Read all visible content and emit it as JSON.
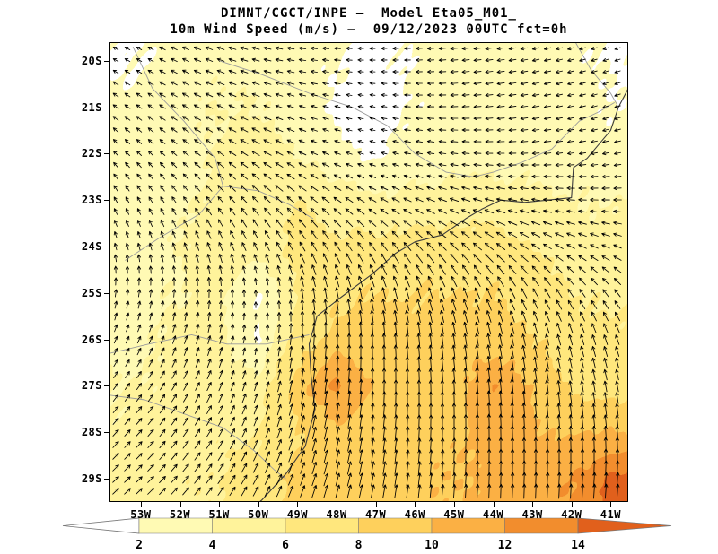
{
  "title": {
    "line1": "DIMNT/CGCT/INPE —  Model Eta05_M01_",
    "line2": "10m Wind Speed (m/s) —  09/12/2023 00UTC fct=0h"
  },
  "axes": {
    "lat_ticks": [
      "20S",
      "21S",
      "22S",
      "23S",
      "24S",
      "25S",
      "26S",
      "27S",
      "28S",
      "29S"
    ],
    "lat_values": [
      -20,
      -21,
      -22,
      -23,
      -24,
      -25,
      -26,
      -27,
      -28,
      -29
    ],
    "lon_ticks": [
      "53W",
      "52W",
      "51W",
      "50W",
      "49W",
      "48W",
      "47W",
      "46W",
      "45W",
      "44W",
      "43W",
      "42W",
      "41W"
    ],
    "lon_values": [
      -53,
      -52,
      -51,
      -50,
      -49,
      -48,
      -47,
      -46,
      -45,
      -44,
      -43,
      -42,
      -41
    ],
    "lon_range": [
      -53.8,
      -40.55
    ],
    "lat_range": [
      -19.6,
      -29.5
    ]
  },
  "colorbar": {
    "labels": [
      "2",
      "4",
      "6",
      "8",
      "10",
      "12",
      "14"
    ],
    "levels": [
      2,
      4,
      6,
      8,
      10,
      12,
      14
    ],
    "colors": [
      "#ffffff",
      "#fffab4",
      "#fff39b",
      "#ffe77d",
      "#fed05c",
      "#fbb044",
      "#f28d2d",
      "#e1601c"
    ]
  },
  "chart_data": {
    "type": "heatmap",
    "title": "10m Wind Speed (m/s)",
    "units": "m/s",
    "model": "Eta05_M01_",
    "valid": "09/12/2023 00UTC fct=0h",
    "legend_position": "bottom",
    "shading_levels": [
      2,
      4,
      6,
      8,
      10,
      12,
      14
    ],
    "lon_deg_east": [
      -53,
      -52,
      -51,
      -50,
      -49,
      -48,
      -47,
      -46,
      -45,
      -44,
      -43,
      -42,
      -41
    ],
    "lat_deg_north": [
      -20,
      -21,
      -22,
      -23,
      -24,
      -25,
      -26,
      -27,
      -28,
      -29
    ],
    "speed_grid_ms": [
      [
        1.8,
        3,
        3.5,
        3.5,
        3,
        2.2,
        1.4,
        2.2,
        3.2,
        3.5,
        3,
        2.5,
        1.8
      ],
      [
        2.5,
        3.5,
        4,
        4,
        3,
        1.5,
        1.2,
        2.2,
        3.2,
        3.5,
        3,
        2.5,
        2.2
      ],
      [
        2.5,
        3,
        4.2,
        5,
        4,
        2.6,
        1.6,
        2.6,
        3.2,
        3.2,
        3,
        2.6,
        2.6
      ],
      [
        2.6,
        3.5,
        4.5,
        5.5,
        6,
        5,
        4.5,
        4.5,
        5,
        5,
        4.5,
        4,
        4
      ],
      [
        3,
        4,
        5,
        5,
        6.5,
        6.5,
        6.5,
        7,
        7,
        7,
        6,
        5,
        4.5
      ],
      [
        3.5,
        4,
        4.5,
        1.8,
        6,
        7.5,
        8,
        8,
        8,
        8,
        7,
        6,
        5.5
      ],
      [
        3.5,
        4.5,
        4.5,
        1.8,
        7,
        8.8,
        9,
        9,
        9,
        9,
        8,
        7,
        6.5
      ],
      [
        4,
        5,
        5.5,
        5,
        9,
        12.5,
        9.5,
        9,
        9,
        12,
        10,
        7.5,
        7
      ],
      [
        4.5,
        5,
        5.5,
        6,
        8,
        9.5,
        9.5,
        9,
        9.5,
        11,
        10,
        10,
        10
      ],
      [
        4.5,
        5.5,
        6,
        7,
        8.5,
        9.5,
        9.5,
        9.5,
        10,
        10.5,
        11,
        12,
        14.5
      ]
    ],
    "arrow_heading_deg": [
      [
        300,
        295,
        290,
        285,
        280,
        275,
        270,
        268,
        265,
        262,
        258,
        255,
        252
      ],
      [
        305,
        300,
        296,
        292,
        288,
        283,
        278,
        273,
        268,
        264,
        260,
        256,
        252
      ],
      [
        315,
        310,
        305,
        300,
        296,
        291,
        286,
        281,
        276,
        271,
        266,
        262,
        258
      ],
      [
        330,
        325,
        320,
        315,
        310,
        305,
        300,
        294,
        289,
        284,
        279,
        274,
        270
      ],
      [
        345,
        341,
        338,
        334,
        330,
        327,
        323,
        318,
        313,
        308,
        303,
        298,
        293
      ],
      [
        8,
        4,
        0,
        356,
        352,
        349,
        346,
        343,
        339,
        335,
        330,
        326,
        322
      ],
      [
        24,
        19,
        14,
        9,
        5,
        1,
        358,
        355,
        352,
        349,
        347,
        344,
        341
      ],
      [
        36,
        30,
        24,
        17,
        11,
        6,
        2,
        359,
        357,
        355,
        353,
        351,
        349
      ],
      [
        42,
        36,
        30,
        23,
        16,
        11,
        7,
        3,
        1,
        359,
        358,
        357,
        356
      ],
      [
        46,
        41,
        35,
        28,
        21,
        15,
        11,
        7,
        4,
        2,
        2,
        3,
        4
      ]
    ],
    "geo": {
      "coastline": [
        [
          -40.55,
          -20.6
        ],
        [
          -40.8,
          -21.0
        ],
        [
          -41.0,
          -21.5
        ],
        [
          -41.6,
          -22.1
        ],
        [
          -41.95,
          -22.3
        ],
        [
          -42.0,
          -22.95
        ],
        [
          -42.6,
          -23.0
        ],
        [
          -43.2,
          -23.05
        ],
        [
          -43.8,
          -23.0
        ],
        [
          -44.3,
          -23.2
        ],
        [
          -44.7,
          -23.4
        ],
        [
          -45.3,
          -23.75
        ],
        [
          -46.0,
          -23.9
        ],
        [
          -46.5,
          -24.15
        ],
        [
          -47.1,
          -24.6
        ],
        [
          -47.9,
          -25.1
        ],
        [
          -48.5,
          -25.5
        ],
        [
          -48.7,
          -26.1
        ],
        [
          -48.65,
          -26.8
        ],
        [
          -48.55,
          -27.5
        ],
        [
          -48.8,
          -28.3
        ],
        [
          -49.3,
          -28.9
        ],
        [
          -49.9,
          -29.45
        ],
        [
          -50.1,
          -29.6
        ]
      ],
      "state_borders": [
        [
          [
            -53.2,
            -19.7
          ],
          [
            -52.7,
            -20.6
          ],
          [
            -51.9,
            -21.3
          ],
          [
            -51.1,
            -22.1
          ],
          [
            -50.9,
            -22.7
          ],
          [
            -51.5,
            -23.3
          ],
          [
            -52.5,
            -23.8
          ],
          [
            -53.4,
            -24.3
          ]
        ],
        [
          [
            -50.9,
            -22.7
          ],
          [
            -50.0,
            -22.8
          ],
          [
            -49.2,
            -23.1
          ],
          [
            -48.6,
            -23.4
          ]
        ],
        [
          [
            -51.0,
            -20.0
          ],
          [
            -49.9,
            -20.3
          ],
          [
            -48.7,
            -20.7
          ],
          [
            -47.6,
            -21.0
          ],
          [
            -46.7,
            -21.4
          ],
          [
            -46.0,
            -22.0
          ],
          [
            -45.2,
            -22.4
          ],
          [
            -44.5,
            -22.5
          ],
          [
            -44.0,
            -22.4
          ]
        ],
        [
          [
            -44.0,
            -22.4
          ],
          [
            -43.3,
            -22.2
          ],
          [
            -42.5,
            -21.9
          ],
          [
            -41.8,
            -21.3
          ],
          [
            -41.3,
            -21.1
          ],
          [
            -40.9,
            -20.9
          ]
        ],
        [
          [
            -53.8,
            -26.3
          ],
          [
            -52.8,
            -26.1
          ],
          [
            -51.7,
            -25.9
          ],
          [
            -50.8,
            -26.1
          ],
          [
            -49.8,
            -26.1
          ],
          [
            -48.7,
            -25.9
          ]
        ],
        [
          [
            -53.8,
            -27.2
          ],
          [
            -52.9,
            -27.3
          ],
          [
            -51.9,
            -27.6
          ],
          [
            -50.9,
            -27.9
          ],
          [
            -50.1,
            -28.4
          ],
          [
            -49.6,
            -28.8
          ],
          [
            -49.3,
            -29.0
          ]
        ],
        [
          [
            -41.9,
            -19.6
          ],
          [
            -41.5,
            -20.2
          ],
          [
            -41.0,
            -20.7
          ],
          [
            -40.8,
            -21.0
          ]
        ]
      ]
    }
  }
}
